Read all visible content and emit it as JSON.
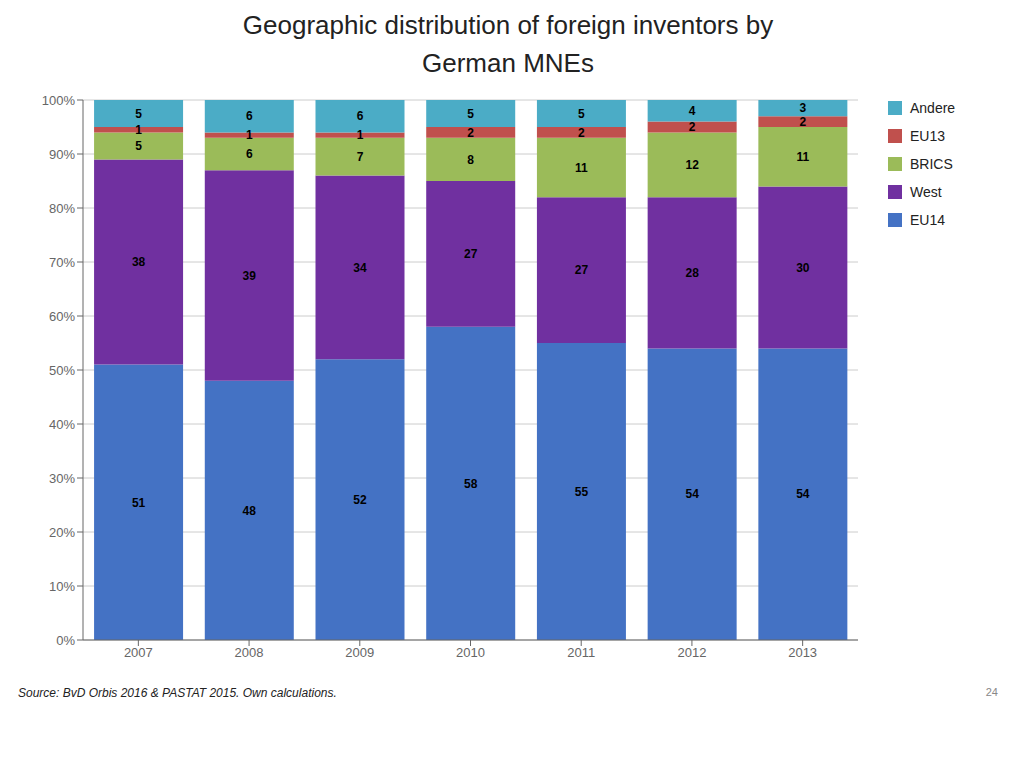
{
  "chart_data": {
    "type": "bar",
    "title": "Geographic distribution of foreign inventors by",
    "subtitle": "German MNEs",
    "categories": [
      "2007",
      "2008",
      "2009",
      "2010",
      "2011",
      "2012",
      "2013"
    ],
    "series": [
      {
        "name": "EU14",
        "color": "#4472C4",
        "values": [
          51,
          48,
          52,
          58,
          55,
          54,
          54
        ]
      },
      {
        "name": "West",
        "color": "#7030A0",
        "values": [
          38,
          39,
          34,
          27,
          27,
          28,
          30
        ]
      },
      {
        "name": "BRICS",
        "color": "#9BBB59",
        "values": [
          5,
          6,
          7,
          8,
          11,
          12,
          11
        ]
      },
      {
        "name": "EU13",
        "color": "#C0504D",
        "values": [
          1,
          1,
          1,
          2,
          2,
          2,
          2
        ]
      },
      {
        "name": "Andere",
        "color": "#4BACC6",
        "values": [
          5,
          6,
          6,
          5,
          5,
          4,
          3
        ]
      }
    ],
    "ylim": [
      0,
      100
    ],
    "yticks": [
      {
        "value": 0,
        "label": "0%"
      },
      {
        "value": 10,
        "label": "10%"
      },
      {
        "value": 20,
        "label": "20%"
      },
      {
        "value": 30,
        "label": "30%"
      },
      {
        "value": 40,
        "label": "40%"
      },
      {
        "value": 50,
        "label": "50%"
      },
      {
        "value": 60,
        "label": "60%"
      },
      {
        "value": 70,
        "label": "70%"
      },
      {
        "value": 80,
        "label": "80%"
      },
      {
        "value": 90,
        "label": "90%"
      },
      {
        "value": 100,
        "label": "100%"
      }
    ],
    "stacked": true,
    "data_labels": true,
    "grid": true,
    "legend": "right",
    "annotations": [
      "Source: BvD Orbis 2016 & PASTAT 2015. Own calculations.",
      "24"
    ]
  }
}
